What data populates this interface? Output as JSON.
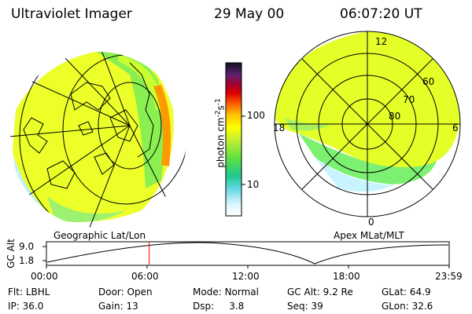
{
  "header": {
    "title": "Ultraviolet Imager",
    "date": "29 May 00",
    "time": "06:07:20 UT"
  },
  "colorbar": {
    "label": "photon cm",
    "label_exp": "-2",
    "label_unit": "s",
    "label_unit_exp": "-1",
    "ticks": [
      "100",
      "10"
    ]
  },
  "left_panel": {
    "caption": "Geographic Lat/Lon"
  },
  "right_panel": {
    "caption": "Apex MLat/MLT",
    "mlt_labels": [
      "12",
      "18",
      "6",
      "0"
    ],
    "mlat_labels": [
      "60",
      "70",
      "80"
    ]
  },
  "timeline": {
    "ylabel": "GC Alt",
    "yticks": [
      "9.0",
      "1.8"
    ],
    "xticks": [
      "00:00",
      "06:00",
      "12:00",
      "18:00",
      "23:59"
    ],
    "current_time_fraction": 0.2551
  },
  "footer": {
    "row1": [
      {
        "label": "Flt:",
        "value": "LBHL"
      },
      {
        "label": "Door:",
        "value": "Open"
      },
      {
        "label": "Mode:",
        "value": "Normal"
      },
      {
        "label": "GC Alt:",
        "value": "9.2 Re"
      },
      {
        "label": "GLat:",
        "value": "64.9"
      }
    ],
    "row2": [
      {
        "label": "IP:",
        "value": "36.0"
      },
      {
        "label": "Gain:",
        "value": "13"
      },
      {
        "label": "Dsp:",
        "value": "3.8"
      },
      {
        "label": "Seq:",
        "value": "39"
      },
      {
        "label": "GLon:",
        "value": "32.6"
      }
    ]
  },
  "colors": {
    "yellow": "#ffff00",
    "yellow_green": "#d8ff30",
    "green": "#80ff40",
    "cyan": "#40e0c0",
    "pale": "#d0f0ff",
    "marker": "#ff0000"
  }
}
